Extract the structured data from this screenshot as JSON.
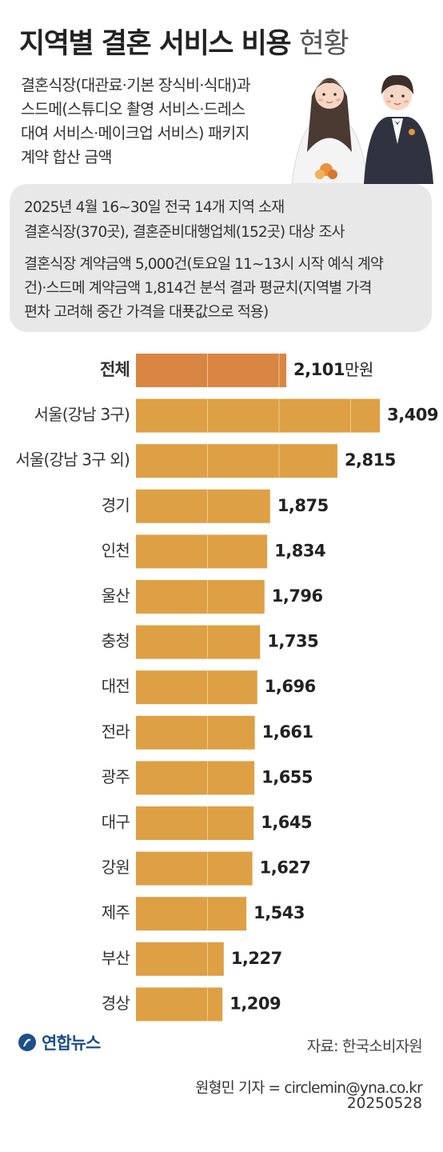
{
  "header": {
    "title_bold": "지역별 결혼 서비스 비용",
    "title_light": "현황"
  },
  "description": {
    "lines": [
      "결혼식장(대관료·기본 장식비·식대)과",
      "스드메(스튜디오 촬영 서비스·드레스",
      "대여 서비스·메이크업 서비스) 패키지",
      "계약 합산 금액"
    ]
  },
  "note": {
    "lines": [
      "2025년 4월 16~30일 전국 14개 지역 소재",
      "결혼식장(370곳), 결혼준비대행업체(152곳) 대상 조사",
      "결혼식장 계약금액 5,000건(토요일 11~13시 시작 예식 계약",
      "건)·스드메 계약금액 1,814건 분석 결과 평균치(지역별 가격",
      "편차 고려해 중간 가격을 대푯값으로 적용)"
    ]
  },
  "chart_data": {
    "type": "bar",
    "orientation": "horizontal",
    "unit": "만원",
    "categories": [
      "전체",
      "서울(강남 3구)",
      "서울(강남 3구 외)",
      "경기",
      "인천",
      "울산",
      "충청",
      "대전",
      "전라",
      "광주",
      "대구",
      "강원",
      "제주",
      "부산",
      "경상"
    ],
    "values": [
      2101,
      3409,
      2815,
      1875,
      1834,
      1796,
      1735,
      1696,
      1661,
      1655,
      1645,
      1627,
      1543,
      1227,
      1209
    ],
    "value_labels": [
      "2,101",
      "3,409",
      "2,815",
      "1,875",
      "1,834",
      "1,796",
      "1,735",
      "1,696",
      "1,661",
      "1,655",
      "1,645",
      "1,627",
      "1,543",
      "1,227",
      "1,209"
    ],
    "highlight_index": 0,
    "colors": {
      "bar": "#dea044",
      "highlight": "#d98544",
      "gridline": "#f0c98a"
    }
  },
  "footer": {
    "logo_text": "연합뉴스",
    "source": "자료: 한국소비자원",
    "reporter": "원형민 기자 = circlemin@yna.co.kr",
    "date": "20250528"
  }
}
